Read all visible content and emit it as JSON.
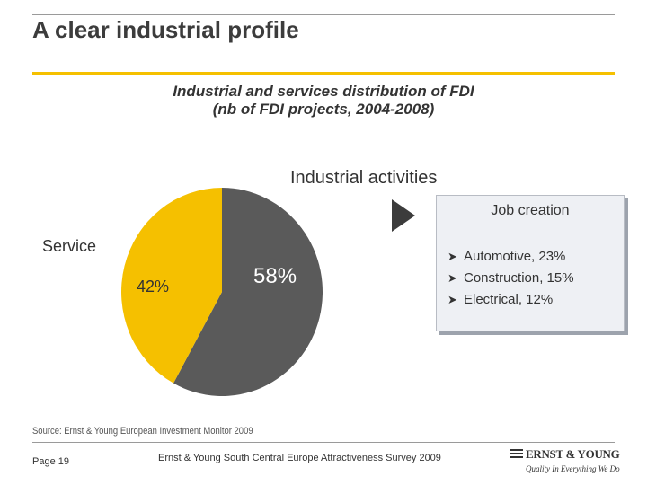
{
  "slide": {
    "title": "A clear industrial profile",
    "source": "Source: Ernst & Young European Investment Monitor 2009",
    "page": "Page 19",
    "footer": "Ernst & Young South Central Europe Attractiveness Survey 2009"
  },
  "job_box": {
    "title": "Job creation",
    "items": [
      "Automotive, 23%",
      "Construction, 15%",
      "Electrical, 12%"
    ]
  },
  "logo": {
    "name": "ERNST & YOUNG",
    "tagline": "Quality In Everything We Do"
  },
  "colors": {
    "accent_yellow": "#f5c000",
    "industrial_gray": "#5a5a5a",
    "rule_gray": "#9a9a9a"
  },
  "chart_data": {
    "type": "pie",
    "title": "Industrial and services distribution of FDI",
    "subtitle": "(nb of FDI projects, 2004-2008)",
    "labels": [
      "Industrial activities",
      "Service"
    ],
    "values": [
      58,
      42
    ],
    "value_labels": [
      "58%",
      "42%"
    ],
    "colors": [
      "#5a5a5a",
      "#f5c000"
    ]
  }
}
